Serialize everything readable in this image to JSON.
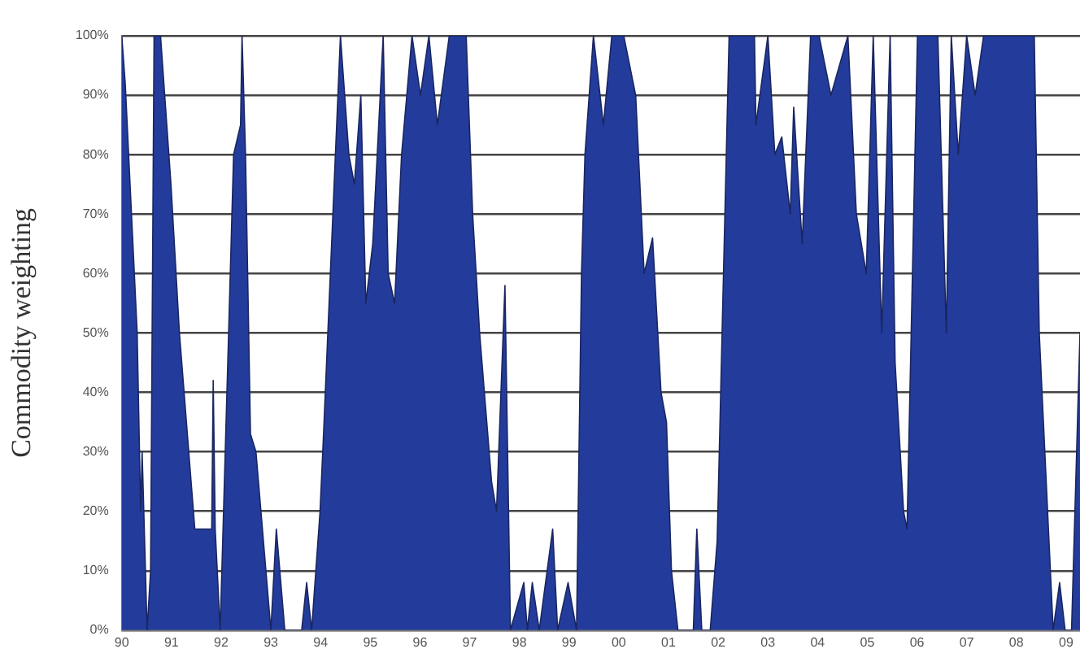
{
  "chart_data": {
    "type": "area",
    "ylabel": "Commodity weighting",
    "x": [
      1990,
      1990.07,
      1990.31,
      1990.38,
      1990.41,
      1990.51,
      1990.58,
      1990.65,
      1990.78,
      1990.99,
      1991.16,
      1991.47,
      1991.81,
      1991.84,
      1991.88,
      1991.98,
      1992.15,
      1992.25,
      1992.39,
      1992.42,
      1992.49,
      1992.59,
      1992.7,
      1993,
      1993.11,
      1993.28,
      1993.62,
      1993.72,
      1993.82,
      1993.99,
      1994.06,
      1994.4,
      1994.57,
      1994.68,
      1994.81,
      1994.91,
      1995.05,
      1995.26,
      1995.36,
      1995.49,
      1995.63,
      1995.84,
      1996.01,
      1996.18,
      1996.35,
      1996.59,
      1996.93,
      1997.06,
      1997.2,
      1997.44,
      1997.54,
      1997.71,
      1997.82,
      1998.09,
      1998.16,
      1998.26,
      1998.4,
      1998.67,
      1998.77,
      1998.98,
      1999.15,
      1999.25,
      1999.32,
      1999.49,
      1999.69,
      1999.86,
      2000.1,
      2000.34,
      2000.51,
      2000.68,
      2000.85,
      2000.96,
      2001.06,
      2001.19,
      2001.5,
      2001.57,
      2001.67,
      2001.84,
      2001.98,
      2002.22,
      2002.56,
      2002.73,
      2002.76,
      2003,
      2003.14,
      2003.28,
      2003.45,
      2003.52,
      2003.69,
      2003.86,
      2004.03,
      2004.27,
      2004.61,
      2004.78,
      2004.98,
      2005.12,
      2005.29,
      2005.46,
      2005.56,
      2005.73,
      2005.8,
      2006.01,
      2006.42,
      2006.59,
      2006.69,
      2006.83,
      2007,
      2007.17,
      2007.34,
      2008.36,
      2008.46,
      2008.74,
      2008.87,
      2008.98,
      2009.11,
      2009.28
    ],
    "series": [
      {
        "color": "#233c9c",
        "values": [
          100,
          92,
          50,
          20,
          30,
          0,
          10,
          100,
          100,
          75,
          50,
          17,
          17,
          42,
          17,
          0,
          50,
          80,
          85,
          100,
          80,
          33,
          30,
          0,
          17,
          0,
          0,
          8,
          0,
          20,
          33,
          100,
          80,
          75,
          90,
          55,
          65,
          100,
          60,
          55,
          80,
          100,
          90,
          100,
          85,
          100,
          100,
          70,
          50,
          25,
          20,
          58,
          0,
          8,
          0,
          8,
          0,
          17,
          0,
          8,
          0,
          60,
          80,
          100,
          85,
          100,
          100,
          90,
          60,
          66,
          40,
          35,
          10,
          0,
          0,
          17,
          0,
          0,
          15,
          100,
          100,
          100,
          85,
          100,
          80,
          83,
          70,
          88,
          65,
          100,
          100,
          90,
          100,
          70,
          60,
          100,
          50,
          100,
          45,
          20,
          17,
          100,
          100,
          50,
          100,
          80,
          100,
          90,
          100,
          100,
          50,
          0,
          8,
          0,
          0,
          50
        ]
      }
    ],
    "xlim": [
      1990,
      2009.28
    ],
    "xticks": [
      {
        "value": 1990,
        "label": "90"
      },
      {
        "value": 1991,
        "label": "91"
      },
      {
        "value": 1992,
        "label": "92"
      },
      {
        "value": 1993,
        "label": "93"
      },
      {
        "value": 1994,
        "label": "94"
      },
      {
        "value": 1995,
        "label": "95"
      },
      {
        "value": 1996,
        "label": "96"
      },
      {
        "value": 1997,
        "label": "97"
      },
      {
        "value": 1998,
        "label": "98"
      },
      {
        "value": 1999,
        "label": "99"
      },
      {
        "value": 2000,
        "label": "00"
      },
      {
        "value": 2001,
        "label": "01"
      },
      {
        "value": 2002,
        "label": "02"
      },
      {
        "value": 2003,
        "label": "03"
      },
      {
        "value": 2004,
        "label": "04"
      },
      {
        "value": 2005,
        "label": "05"
      },
      {
        "value": 2006,
        "label": "06"
      },
      {
        "value": 2007,
        "label": "07"
      },
      {
        "value": 2008,
        "label": "08"
      },
      {
        "value": 2009,
        "label": "09"
      }
    ],
    "ylim": [
      0,
      100
    ],
    "yticks": [
      {
        "value": 0,
        "label": "0%"
      },
      {
        "value": 10,
        "label": "10%"
      },
      {
        "value": 20,
        "label": "20%"
      },
      {
        "value": 30,
        "label": "30%"
      },
      {
        "value": 40,
        "label": "40%"
      },
      {
        "value": 50,
        "label": "50%"
      },
      {
        "value": 60,
        "label": "60%"
      },
      {
        "value": 70,
        "label": "70%"
      },
      {
        "value": 80,
        "label": "80%"
      },
      {
        "value": 90,
        "label": "90%"
      },
      {
        "value": 100,
        "label": "100%"
      }
    ],
    "grid": "y",
    "legend": false
  }
}
